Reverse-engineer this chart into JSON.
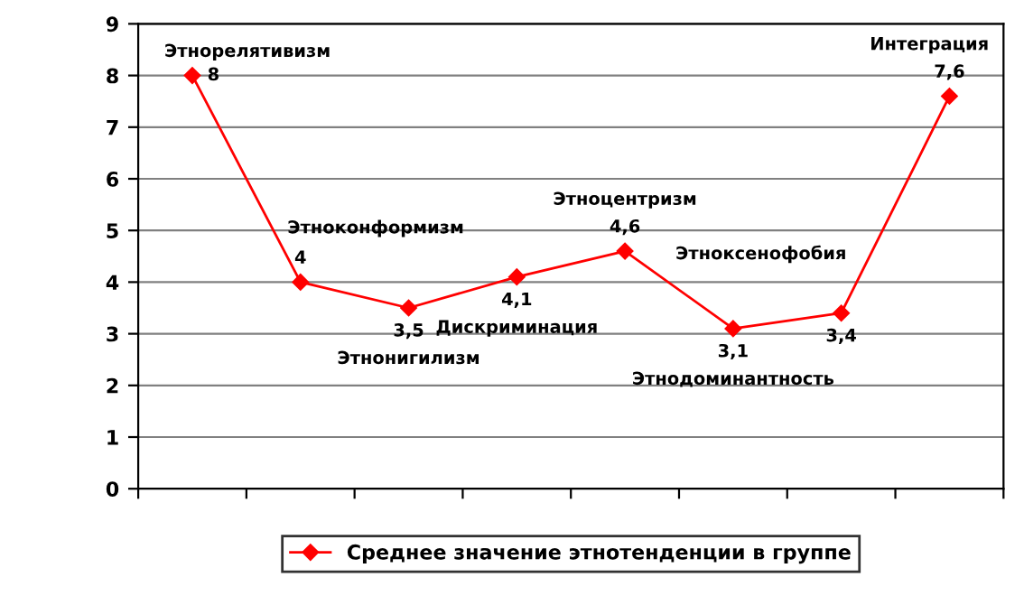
{
  "chart_data": {
    "type": "line",
    "categories": [
      null,
      null,
      null,
      null,
      null,
      null,
      null,
      null
    ],
    "annotations": [
      "Этнорелятивизм",
      "Этноконформизм",
      "Этнонигилизм",
      "Дискриминация",
      "Этноцентризм",
      "Этнодоминантность",
      "Этноксенофобия",
      "Интеграция"
    ],
    "series": [
      {
        "name": "Среднее значение этнотенденции в группе",
        "color": "#ff0000",
        "values": [
          8,
          4,
          3.5,
          4.1,
          4.6,
          3.1,
          3.4,
          7.6
        ],
        "value_labels": [
          "8",
          "4",
          "3,5",
          "4,1",
          "4,6",
          "3,1",
          "3,4",
          "7,6"
        ]
      }
    ],
    "ylim": [
      0,
      9
    ],
    "yticks": [
      0,
      1,
      2,
      3,
      4,
      5,
      6,
      7,
      8,
      9
    ],
    "grid": "y",
    "legend": "bottom",
    "marker": "diamond",
    "line_style": "solid",
    "tick_labels": "y"
  }
}
